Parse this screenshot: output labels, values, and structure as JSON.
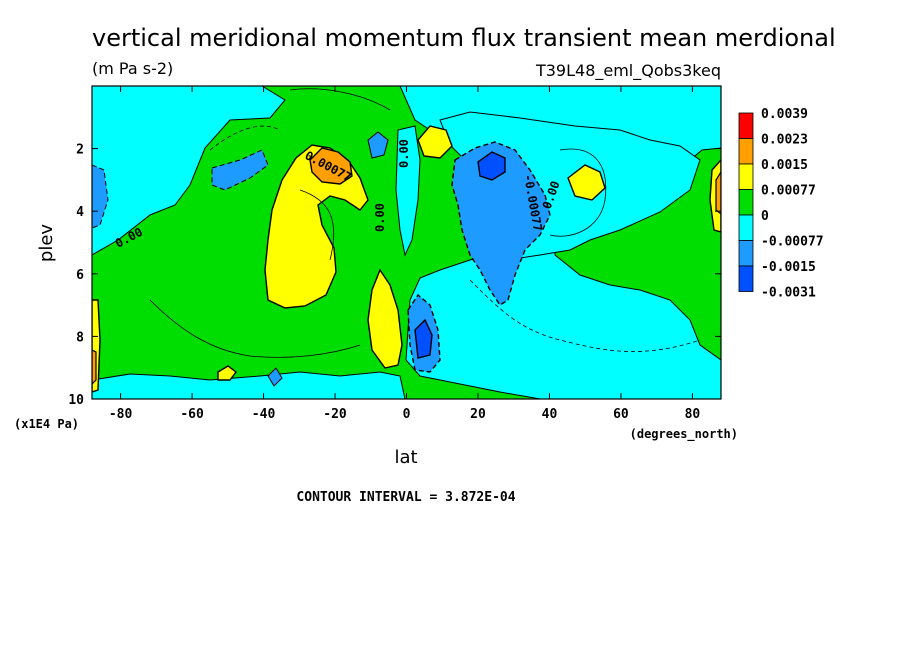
{
  "chart_data": {
    "type": "heatmap",
    "subtype": "filled-contour",
    "title": "vertical meridional momentum flux transient mean merdional",
    "units": "(m Pa s-2)",
    "dataset": "T39L48_eml_Qobs3keq",
    "xlabel": "lat",
    "x_units": "(degrees_north)",
    "ylabel": "plev",
    "y_units": "(x1E4 Pa)",
    "xlim": [
      -88,
      88
    ],
    "ylim": [
      0,
      10
    ],
    "y_inverted": true,
    "x_ticks": [
      "-80",
      "-60",
      "-40",
      "-20",
      "0",
      "20",
      "40",
      "60",
      "80"
    ],
    "y_ticks": [
      "2",
      "4",
      "6",
      "8",
      "10"
    ],
    "contour_interval_text": "CONTOUR INTERVAL = 3.872E-04",
    "contour_labels": [
      "0.00",
      "0.00",
      "0.00",
      "0.00",
      "0.00077",
      "-0.00077",
      "0.00"
    ],
    "legend": {
      "placement": "right",
      "levels": [
        "0.0039",
        "0.0023",
        "0.0015",
        "0.00077",
        "0",
        "-0.00077",
        "-0.0015",
        "-0.0031"
      ],
      "colors": [
        "#ff0000",
        "#ff9f00",
        "#ffff00",
        "#00dd00",
        "#00ffff",
        "#1e9bff",
        "#0050ff"
      ]
    },
    "features": [
      {
        "name": "positive lobe SH",
        "lat_range": [
          -40,
          -5
        ],
        "plev_range": [
          1.5,
          7.5
        ],
        "peak_value": 0.0023,
        "peak_lat": -22,
        "peak_plev": 2.5
      },
      {
        "name": "negative lobe NH",
        "lat_range": [
          10,
          45
        ],
        "plev_range": [
          1.5,
          7
        ],
        "peak_value": -0.0015,
        "peak_lat": 25,
        "peak_plev": 3
      },
      {
        "name": "positive upper NH",
        "lat": 8,
        "plev": 2,
        "value": 0.0015
      },
      {
        "name": "positive NH high-lat",
        "lat": 55,
        "plev": 3,
        "value": 0.00077
      },
      {
        "name": "negative near equator",
        "lat_range": [
          2,
          10
        ],
        "plev_range": [
          7,
          10
        ],
        "value": -0.0015
      }
    ]
  }
}
